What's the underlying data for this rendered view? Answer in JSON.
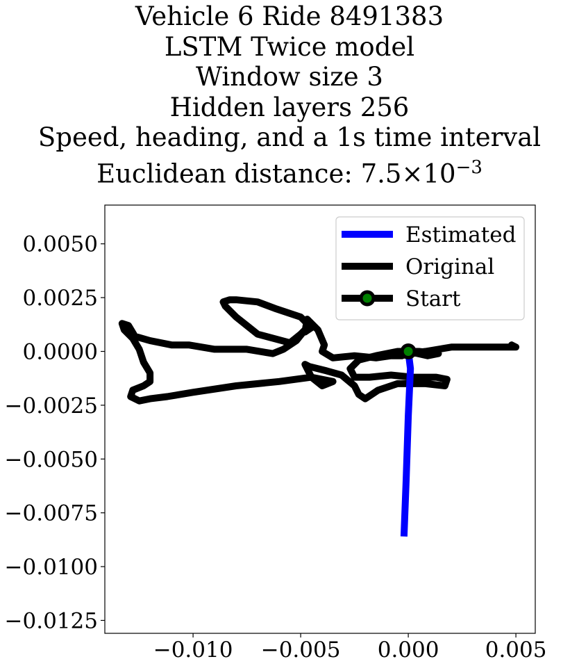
{
  "chart_data": {
    "type": "line",
    "title_lines": [
      "Vehicle 6 Ride 8491383",
      "LSTM Twice model",
      "Window size 3",
      "Hidden layers 256",
      "Speed, heading, and a 1s time interval"
    ],
    "title_distance_prefix": "Euclidean distance: 7.5",
    "title_distance_times": "×",
    "title_distance_base": "10",
    "title_distance_exponent": "−3",
    "xlabel": "",
    "ylabel": "",
    "xlim": [
      -0.0141,
      0.0059
    ],
    "ylim": [
      -0.0131,
      0.0068
    ],
    "x_ticks": [
      -0.01,
      -0.005,
      0.0,
      0.005
    ],
    "x_tick_labels": [
      "−0.010",
      "−0.005",
      "0.000",
      "0.005"
    ],
    "y_ticks": [
      0.005,
      0.0025,
      0.0,
      -0.0025,
      -0.005,
      -0.0075,
      -0.01,
      -0.0125
    ],
    "y_tick_labels": [
      "0.0050",
      "0.0025",
      "0.0000",
      "−0.0025",
      "−0.0050",
      "−0.0075",
      "−0.0100",
      "−0.0125"
    ],
    "grid": false,
    "legend_position": "top-right",
    "series": [
      {
        "name": "Estimated",
        "color": "#0000ff",
        "x": [
          -0.0002,
          -0.0001,
          0.0,
          0.0001,
          0.0
        ],
        "y": [
          -0.0086,
          -0.006,
          -0.003,
          -0.0008,
          0.0
        ]
      },
      {
        "name": "Original",
        "color": "#000000",
        "x": [
          0.0,
          0.0009,
          0.0014,
          0.0005,
          -0.0005,
          -0.0015,
          -0.0023,
          -0.0027,
          -0.0025,
          -0.0018,
          -0.0008,
          0.0002,
          0.0013,
          0.0018,
          0.0017,
          0.0008,
          -0.0005,
          -0.0014,
          -0.002,
          -0.0023,
          -0.0025,
          -0.0031,
          -0.0038,
          -0.0046,
          -0.0048,
          -0.0045,
          -0.004,
          -0.0035,
          -0.0045,
          -0.006,
          -0.008,
          -0.01,
          -0.0112,
          -0.012,
          -0.0125,
          -0.0129,
          -0.0128,
          -0.0123,
          -0.012,
          -0.012,
          -0.0123,
          -0.0125,
          -0.0128,
          -0.0132,
          -0.0133,
          -0.013,
          -0.0127,
          -0.012,
          -0.011,
          -0.0102,
          -0.009,
          -0.0075,
          -0.0063,
          -0.0058,
          -0.0052,
          -0.0048,
          -0.005,
          -0.0055,
          -0.007,
          -0.0075,
          -0.008,
          -0.0085,
          -0.0086,
          -0.0083,
          -0.008,
          -0.007,
          -0.0062,
          -0.005,
          -0.0045,
          -0.0048,
          -0.0047,
          -0.0042,
          -0.0039,
          -0.004,
          -0.0035,
          -0.0025,
          -0.0015,
          -0.0008,
          -0.0003,
          0.0,
          0.0008,
          0.002,
          0.003,
          0.004,
          0.005,
          0.0048,
          0.005
        ],
        "y": [
          0.0,
          -0.0002,
          -0.0001,
          0.0,
          0.0,
          -0.0002,
          -0.0004,
          -0.0008,
          -0.0012,
          -0.0012,
          -0.0011,
          -0.0012,
          -0.0012,
          -0.0013,
          -0.0016,
          -0.0015,
          -0.0015,
          -0.0018,
          -0.0022,
          -0.002,
          -0.0016,
          -0.0011,
          -0.0009,
          -0.0007,
          -0.0006,
          -0.0012,
          -0.0016,
          -0.0014,
          -0.0012,
          -0.0014,
          -0.0016,
          -0.0019,
          -0.0021,
          -0.0022,
          -0.0023,
          -0.0021,
          -0.0018,
          -0.0016,
          -0.0014,
          -0.001,
          -0.0005,
          0.0001,
          0.0006,
          0.001,
          0.0013,
          0.0012,
          0.0007,
          0.0005,
          0.0003,
          0.0003,
          0.0001,
          0.0001,
          -0.0001,
          0.0001,
          0.0005,
          0.001,
          0.0008,
          0.0004,
          0.0008,
          0.0012,
          0.0016,
          0.0021,
          0.0023,
          0.0024,
          0.0024,
          0.0023,
          0.002,
          0.0016,
          0.0011,
          0.0009,
          0.0015,
          0.001,
          0.0003,
          0.0,
          -0.0003,
          -0.0002,
          -0.0003,
          -0.0002,
          -0.0002,
          -0.0001,
          0.0,
          0.0002,
          0.0002,
          0.0002,
          0.0002,
          0.0003,
          0.0002
        ]
      }
    ],
    "start": {
      "name": "Start",
      "x": 0.0,
      "y": 0.0,
      "marker_color": "#008000",
      "edge_color": "#000000"
    }
  }
}
